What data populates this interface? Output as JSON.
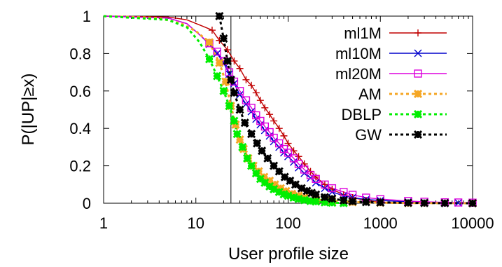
{
  "chart_data": {
    "type": "line",
    "xlabel": "User profile size",
    "ylabel": "P(|UP|≥x)",
    "xscale": "log",
    "xlim": [
      1,
      10000
    ],
    "ylim": [
      0,
      1
    ],
    "xticks": [
      1,
      10,
      100,
      1000,
      10000
    ],
    "xtick_labels": [
      "1",
      "10",
      "100",
      "1000",
      "10000"
    ],
    "yticks": [
      0,
      0.2,
      0.4,
      0.6,
      0.8,
      1
    ],
    "ytick_labels": [
      "0",
      "0.2",
      "0.4",
      "0.6",
      "0.8",
      "1"
    ],
    "grid": false,
    "legend_position": "top-right",
    "vertical_line_x": 24,
    "series": [
      {
        "name": "ml1M",
        "color": "#c00000",
        "marker": "plus",
        "dash": "solid",
        "points": [
          [
            1,
            1
          ],
          [
            5,
            0.995
          ],
          [
            8,
            0.98
          ],
          [
            12,
            0.945
          ],
          [
            15,
            0.925
          ],
          [
            18,
            0.87
          ],
          [
            22,
            0.82
          ],
          [
            26,
            0.76
          ],
          [
            30,
            0.72
          ],
          [
            35,
            0.66
          ],
          [
            40,
            0.63
          ],
          [
            45,
            0.59
          ],
          [
            50,
            0.55
          ],
          [
            56,
            0.51
          ],
          [
            63,
            0.475
          ],
          [
            70,
            0.44
          ],
          [
            80,
            0.4
          ],
          [
            90,
            0.36
          ],
          [
            100,
            0.32
          ],
          [
            115,
            0.28
          ],
          [
            130,
            0.25
          ],
          [
            150,
            0.21
          ],
          [
            175,
            0.17
          ],
          [
            200,
            0.14
          ],
          [
            250,
            0.1
          ],
          [
            300,
            0.075
          ],
          [
            400,
            0.045
          ],
          [
            500,
            0.03
          ],
          [
            700,
            0.015
          ],
          [
            1000,
            0.006
          ],
          [
            2000,
            0.001
          ],
          [
            3000,
            0
          ]
        ]
      },
      {
        "name": "ml10M",
        "color": "#0000cc",
        "marker": "cross",
        "dash": "solid",
        "points": [
          [
            1,
            1
          ],
          [
            5,
            0.99
          ],
          [
            8,
            0.96
          ],
          [
            11,
            0.9
          ],
          [
            14,
            0.85
          ],
          [
            17,
            0.8
          ],
          [
            20,
            0.75
          ],
          [
            23,
            0.69
          ],
          [
            26,
            0.64
          ],
          [
            30,
            0.58
          ],
          [
            35,
            0.53
          ],
          [
            40,
            0.49
          ],
          [
            45,
            0.45
          ],
          [
            50,
            0.42
          ],
          [
            56,
            0.39
          ],
          [
            63,
            0.36
          ],
          [
            70,
            0.33
          ],
          [
            80,
            0.3
          ],
          [
            90,
            0.27
          ],
          [
            100,
            0.25
          ],
          [
            115,
            0.22
          ],
          [
            130,
            0.19
          ],
          [
            150,
            0.16
          ],
          [
            175,
            0.135
          ],
          [
            200,
            0.11
          ],
          [
            250,
            0.08
          ],
          [
            300,
            0.06
          ],
          [
            400,
            0.04
          ],
          [
            500,
            0.03
          ],
          [
            700,
            0.02
          ],
          [
            1000,
            0.015
          ],
          [
            2000,
            0.008
          ],
          [
            3000,
            0.005
          ],
          [
            5000,
            0.003
          ],
          [
            7000,
            0.002
          ],
          [
            10000,
            0.001
          ]
        ]
      },
      {
        "name": "ml20M",
        "color": "#dd00dd",
        "marker": "square",
        "dash": "solid",
        "points": [
          [
            1,
            1
          ],
          [
            5,
            0.99
          ],
          [
            8,
            0.96
          ],
          [
            11,
            0.9
          ],
          [
            14,
            0.855
          ],
          [
            17,
            0.81
          ],
          [
            20,
            0.76
          ],
          [
            23,
            0.7
          ],
          [
            26,
            0.65
          ],
          [
            30,
            0.6
          ],
          [
            35,
            0.55
          ],
          [
            40,
            0.51
          ],
          [
            45,
            0.47
          ],
          [
            50,
            0.44
          ],
          [
            56,
            0.41
          ],
          [
            63,
            0.38
          ],
          [
            70,
            0.35
          ],
          [
            80,
            0.32
          ],
          [
            90,
            0.29
          ],
          [
            100,
            0.27
          ],
          [
            115,
            0.24
          ],
          [
            130,
            0.21
          ],
          [
            150,
            0.18
          ],
          [
            175,
            0.15
          ],
          [
            200,
            0.13
          ],
          [
            250,
            0.1
          ],
          [
            300,
            0.08
          ],
          [
            400,
            0.06
          ],
          [
            500,
            0.045
          ],
          [
            700,
            0.03
          ],
          [
            1000,
            0.022
          ],
          [
            2000,
            0.012
          ],
          [
            3000,
            0.008
          ],
          [
            5000,
            0.005
          ],
          [
            7000,
            0.004
          ],
          [
            10000,
            0.003
          ]
        ]
      },
      {
        "name": "AM",
        "color": "#f5a623",
        "marker": "star",
        "dash": "dotted",
        "points": [
          [
            1,
            1
          ],
          [
            4,
            0.99
          ],
          [
            7,
            0.96
          ],
          [
            10,
            0.92
          ],
          [
            14,
            0.86
          ],
          [
            18,
            0.75
          ],
          [
            21,
            0.65
          ],
          [
            24,
            0.52
          ],
          [
            27,
            0.42
          ],
          [
            30,
            0.34
          ],
          [
            33,
            0.29
          ],
          [
            37,
            0.24
          ],
          [
            42,
            0.2
          ],
          [
            48,
            0.17
          ],
          [
            55,
            0.14
          ],
          [
            63,
            0.12
          ],
          [
            72,
            0.1
          ],
          [
            83,
            0.08
          ],
          [
            95,
            0.065
          ],
          [
            110,
            0.05
          ],
          [
            130,
            0.04
          ],
          [
            150,
            0.03
          ],
          [
            200,
            0.02
          ],
          [
            300,
            0.012
          ],
          [
            500,
            0.006
          ],
          [
            1000,
            0.003
          ],
          [
            2000,
            0.001
          ],
          [
            10000,
            0
          ]
        ]
      },
      {
        "name": "DBLP",
        "color": "#00ee00",
        "marker": "star",
        "dash": "dotted",
        "points": [
          [
            1,
            1
          ],
          [
            5,
            0.98
          ],
          [
            8,
            0.94
          ],
          [
            11,
            0.86
          ],
          [
            14,
            0.77
          ],
          [
            17,
            0.68
          ],
          [
            20,
            0.6
          ],
          [
            23,
            0.52
          ],
          [
            26,
            0.44
          ],
          [
            28,
            0.37
          ],
          [
            32,
            0.3
          ],
          [
            36,
            0.24
          ],
          [
            40,
            0.2
          ],
          [
            45,
            0.16
          ],
          [
            50,
            0.13
          ],
          [
            56,
            0.11
          ],
          [
            63,
            0.09
          ],
          [
            70,
            0.075
          ],
          [
            80,
            0.06
          ],
          [
            90,
            0.048
          ],
          [
            100,
            0.04
          ],
          [
            115,
            0.03
          ],
          [
            130,
            0.023
          ],
          [
            150,
            0.017
          ],
          [
            175,
            0.012
          ],
          [
            200,
            0.009
          ],
          [
            250,
            0.005
          ],
          [
            300,
            0.003
          ],
          [
            400,
            0.001
          ]
        ]
      },
      {
        "name": "GW",
        "color": "#000000",
        "marker": "star",
        "dash": "dotted",
        "points": [
          [
            18,
            1
          ],
          [
            20,
            0.88
          ],
          [
            22,
            0.76
          ],
          [
            24,
            0.66
          ],
          [
            26,
            0.59
          ],
          [
            30,
            0.5
          ],
          [
            34,
            0.43
          ],
          [
            40,
            0.37
          ],
          [
            46,
            0.32
          ],
          [
            52,
            0.28
          ],
          [
            60,
            0.24
          ],
          [
            70,
            0.2
          ],
          [
            80,
            0.17
          ],
          [
            92,
            0.14
          ],
          [
            105,
            0.12
          ],
          [
            120,
            0.1
          ],
          [
            140,
            0.08
          ],
          [
            160,
            0.066
          ],
          [
            180,
            0.055
          ],
          [
            200,
            0.046
          ],
          [
            250,
            0.032
          ],
          [
            300,
            0.024
          ],
          [
            400,
            0.015
          ],
          [
            500,
            0.01
          ],
          [
            700,
            0.006
          ],
          [
            1000,
            0.004
          ],
          [
            2000,
            0.002
          ],
          [
            3000,
            0.001
          ],
          [
            5000,
            0.0005
          ],
          [
            10000,
            0
          ]
        ]
      }
    ]
  }
}
